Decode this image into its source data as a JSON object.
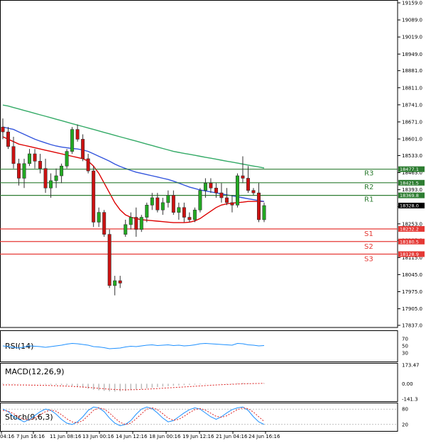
{
  "chart_data": {
    "type": "candlestick",
    "price_axis": {
      "ticks": [
        "19159.0",
        "19089.0",
        "19019.0",
        "18949.0",
        "18881.0",
        "18811.0",
        "18741.0",
        "18671.0",
        "18601.0",
        "18533.0",
        "18463.0",
        "18393.0",
        "18323.0",
        "18253.0",
        "18185.0",
        "18115.0",
        "18045.0",
        "17975.0",
        "17905.0",
        "17837.0"
      ],
      "range": [
        17837,
        19159
      ]
    },
    "time_axis": {
      "labels": [
        "04:16",
        "7 Jun 16:16",
        "11 Jun 08:16",
        "13 Jun 00:16",
        "14 Jun 12:16",
        "18 Jun 00:16",
        "19 Jun 12:16",
        "21 Jun 04:16",
        "24 Jun 16:16"
      ]
    },
    "current_price": "18328.0",
    "candles": [
      {
        "o": 18650,
        "h": 18685,
        "l": 18600,
        "c": 18630
      },
      {
        "o": 18630,
        "h": 18650,
        "l": 18560,
        "c": 18570
      },
      {
        "o": 18570,
        "h": 18610,
        "l": 18480,
        "c": 18500
      },
      {
        "o": 18500,
        "h": 18520,
        "l": 18410,
        "c": 18440
      },
      {
        "o": 18440,
        "h": 18520,
        "l": 18400,
        "c": 18500
      },
      {
        "o": 18500,
        "h": 18560,
        "l": 18490,
        "c": 18540
      },
      {
        "o": 18540,
        "h": 18560,
        "l": 18480,
        "c": 18510
      },
      {
        "o": 18510,
        "h": 18540,
        "l": 18460,
        "c": 18480
      },
      {
        "o": 18480,
        "h": 18520,
        "l": 18380,
        "c": 18400
      },
      {
        "o": 18400,
        "h": 18460,
        "l": 18360,
        "c": 18430
      },
      {
        "o": 18430,
        "h": 18480,
        "l": 18400,
        "c": 18450
      },
      {
        "o": 18450,
        "h": 18500,
        "l": 18420,
        "c": 18490
      },
      {
        "o": 18490,
        "h": 18560,
        "l": 18480,
        "c": 18550
      },
      {
        "o": 18550,
        "h": 18650,
        "l": 18540,
        "c": 18640
      },
      {
        "o": 18640,
        "h": 18660,
        "l": 18590,
        "c": 18600
      },
      {
        "o": 18600,
        "h": 18620,
        "l": 18510,
        "c": 18520
      },
      {
        "o": 18520,
        "h": 18540,
        "l": 18460,
        "c": 18470
      },
      {
        "o": 18470,
        "h": 18490,
        "l": 18240,
        "c": 18260
      },
      {
        "o": 18260,
        "h": 18320,
        "l": 18240,
        "c": 18300
      },
      {
        "o": 18300,
        "h": 18310,
        "l": 18200,
        "c": 18210
      },
      {
        "o": 18210,
        "h": 18230,
        "l": 17990,
        "c": 18000
      },
      {
        "o": 18000,
        "h": 18040,
        "l": 17960,
        "c": 18020
      },
      {
        "o": 18020,
        "h": 18040,
        "l": 17990,
        "c": 18010
      },
      {
        "o": 18210,
        "h": 18270,
        "l": 18200,
        "c": 18250
      },
      {
        "o": 18250,
        "h": 18300,
        "l": 18230,
        "c": 18280
      },
      {
        "o": 18280,
        "h": 18320,
        "l": 18200,
        "c": 18230
      },
      {
        "o": 18230,
        "h": 18290,
        "l": 18220,
        "c": 18280
      },
      {
        "o": 18280,
        "h": 18340,
        "l": 18260,
        "c": 18330
      },
      {
        "o": 18330,
        "h": 18380,
        "l": 18310,
        "c": 18360
      },
      {
        "o": 18360,
        "h": 18380,
        "l": 18300,
        "c": 18310
      },
      {
        "o": 18310,
        "h": 18360,
        "l": 18290,
        "c": 18340
      },
      {
        "o": 18340,
        "h": 18390,
        "l": 18320,
        "c": 18370
      },
      {
        "o": 18370,
        "h": 18390,
        "l": 18290,
        "c": 18300
      },
      {
        "o": 18300,
        "h": 18340,
        "l": 18270,
        "c": 18320
      },
      {
        "o": 18320,
        "h": 18340,
        "l": 18260,
        "c": 18280
      },
      {
        "o": 18280,
        "h": 18300,
        "l": 18260,
        "c": 18270
      },
      {
        "o": 18270,
        "h": 18320,
        "l": 18260,
        "c": 18310
      },
      {
        "o": 18310,
        "h": 18400,
        "l": 18300,
        "c": 18390
      },
      {
        "o": 18390,
        "h": 18440,
        "l": 18360,
        "c": 18420
      },
      {
        "o": 18420,
        "h": 18440,
        "l": 18380,
        "c": 18400
      },
      {
        "o": 18400,
        "h": 18420,
        "l": 18360,
        "c": 18380
      },
      {
        "o": 18380,
        "h": 18420,
        "l": 18340,
        "c": 18360
      },
      {
        "o": 18360,
        "h": 18400,
        "l": 18330,
        "c": 18340
      },
      {
        "o": 18340,
        "h": 18370,
        "l": 18300,
        "c": 18330
      },
      {
        "o": 18330,
        "h": 18460,
        "l": 18320,
        "c": 18450
      },
      {
        "o": 18450,
        "h": 18530,
        "l": 18420,
        "c": 18440
      },
      {
        "o": 18440,
        "h": 18490,
        "l": 18380,
        "c": 18390
      },
      {
        "o": 18390,
        "h": 18400,
        "l": 18370,
        "c": 18380
      },
      {
        "o": 18380,
        "h": 18420,
        "l": 18260,
        "c": 18270
      },
      {
        "o": 18270,
        "h": 18340,
        "l": 18260,
        "c": 18328
      }
    ],
    "moving_averages": [
      {
        "color": "#dd0000",
        "values": [
          18610,
          18600,
          18590,
          18580,
          18575,
          18570,
          18565,
          18560,
          18555,
          18550,
          18545,
          18540,
          18535,
          18530,
          18525,
          18520,
          18510,
          18490,
          18460,
          18420,
          18380,
          18340,
          18310,
          18290,
          18280,
          18275,
          18270,
          18268,
          18266,
          18264,
          18262,
          18260,
          18258,
          18258,
          18258,
          18260,
          18265,
          18275,
          18290,
          18305,
          18320,
          18330,
          18335,
          18338,
          18340,
          18342,
          18345,
          18345,
          18345,
          18345
        ]
      },
      {
        "color": "#3355dd",
        "values": [
          18650,
          18645,
          18640,
          18630,
          18620,
          18610,
          18600,
          18592,
          18585,
          18578,
          18572,
          18568,
          18565,
          18562,
          18560,
          18556,
          18550,
          18540,
          18530,
          18520,
          18510,
          18498,
          18488,
          18480,
          18472,
          18465,
          18460,
          18455,
          18450,
          18445,
          18440,
          18435,
          18428,
          18420,
          18412,
          18404,
          18398,
          18392,
          18388,
          18384,
          18380,
          18376,
          18372,
          18368,
          18364,
          18360,
          18356,
          18352,
          18348,
          18345
        ]
      },
      {
        "color": "#33aa66",
        "values": [
          18740,
          18736,
          18730,
          18724,
          18718,
          18712,
          18706,
          18700,
          18694,
          18688,
          18682,
          18676,
          18670,
          18664,
          18658,
          18652,
          18646,
          18640,
          18634,
          18628,
          18622,
          18616,
          18610,
          18604,
          18598,
          18592,
          18586,
          18580,
          18574,
          18568,
          18562,
          18556,
          18550,
          18546,
          18542,
          18538,
          18534,
          18530,
          18526,
          18522,
          18518,
          18514,
          18510,
          18506,
          18502,
          18498,
          18494,
          18490,
          18486,
          18482
        ]
      }
    ],
    "levels": [
      {
        "name": "R3",
        "value": 18477.1,
        "tag": "18477.1",
        "color": "#2e7d32"
      },
      {
        "name": "R2",
        "value": 18421.5,
        "tag": "18421.5",
        "color": "#2e7d32"
      },
      {
        "name": "R1",
        "value": 18369.8,
        "tag": "18369.8",
        "color": "#2e7d32"
      },
      {
        "name": "S1",
        "value": 18232.2,
        "tag": "18232.2",
        "color": "#e53935"
      },
      {
        "name": "S2",
        "value": 18180.5,
        "tag": "18180.5",
        "color": "#e53935"
      },
      {
        "name": "S3",
        "value": 18128.9,
        "tag": "18128.9",
        "color": "#e53935"
      }
    ],
    "indicators": {
      "rsi": {
        "title": "RSI(14)",
        "ticks": [
          "70",
          "50",
          "30"
        ],
        "range": [
          10,
          90
        ],
        "values": [
          50,
          48,
          46,
          44,
          47,
          50,
          49,
          48,
          46,
          48,
          50,
          52,
          55,
          57,
          56,
          54,
          52,
          48,
          47,
          45,
          42,
          43,
          44,
          47,
          49,
          48,
          50,
          52,
          53,
          51,
          52,
          53,
          51,
          52,
          50,
          51,
          53,
          56,
          57,
          56,
          55,
          54,
          53,
          52,
          57,
          56,
          53,
          52,
          50,
          51
        ]
      },
      "macd": {
        "title": "MACD(12,26,9)",
        "ticks": [
          "173.47",
          "0.00",
          "-141.3"
        ],
        "range": [
          -141.3,
          173.47
        ],
        "hist": [
          5,
          4,
          3,
          2,
          1,
          0,
          -2,
          -4,
          -6,
          -8,
          -10,
          -12,
          -14,
          -18,
          -25,
          -35,
          -45,
          -55,
          -60,
          -65,
          -70,
          -72,
          -70,
          -66,
          -60,
          -54,
          -48,
          -42,
          -36,
          -30,
          -26,
          -22,
          -18,
          -15,
          -12,
          -10,
          -8,
          -6,
          -4,
          -2,
          0,
          2,
          3,
          4,
          6,
          8,
          7,
          6,
          5,
          4
        ],
        "signal": [
          -10,
          -10,
          -10,
          -11,
          -11,
          -12,
          -13,
          -14,
          -15,
          -16,
          -18,
          -20,
          -22,
          -24,
          -27,
          -30,
          -34,
          -38,
          -42,
          -46,
          -50,
          -53,
          -55,
          -56,
          -55,
          -54,
          -52,
          -50,
          -47,
          -44,
          -41,
          -38,
          -35,
          -32,
          -29,
          -26,
          -23,
          -20,
          -17,
          -14,
          -11,
          -8,
          -6,
          -4,
          -2,
          0,
          1,
          2,
          3,
          4
        ]
      },
      "stoch": {
        "title": "Stoch(9,6,3)",
        "ticks": [
          "80",
          "20"
        ],
        "range": [
          0,
          100
        ],
        "k": [
          80,
          70,
          50,
          40,
          30,
          40,
          55,
          70,
          80,
          75,
          60,
          40,
          25,
          20,
          30,
          50,
          75,
          88,
          85,
          70,
          45,
          25,
          15,
          20,
          35,
          60,
          80,
          88,
          82,
          65,
          45,
          30,
          35,
          50,
          65,
          78,
          85,
          80,
          65,
          50,
          40,
          50,
          65,
          78,
          85,
          88,
          75,
          50,
          30,
          20
        ],
        "d": [
          75,
          72,
          62,
          50,
          40,
          38,
          45,
          58,
          70,
          76,
          72,
          58,
          42,
          30,
          26,
          35,
          55,
          75,
          85,
          80,
          65,
          45,
          28,
          20,
          25,
          42,
          62,
          80,
          85,
          78,
          62,
          45,
          36,
          40,
          52,
          66,
          78,
          82,
          76,
          64,
          52,
          48,
          54,
          66,
          78,
          85,
          82,
          68,
          50,
          32
        ]
      }
    }
  }
}
